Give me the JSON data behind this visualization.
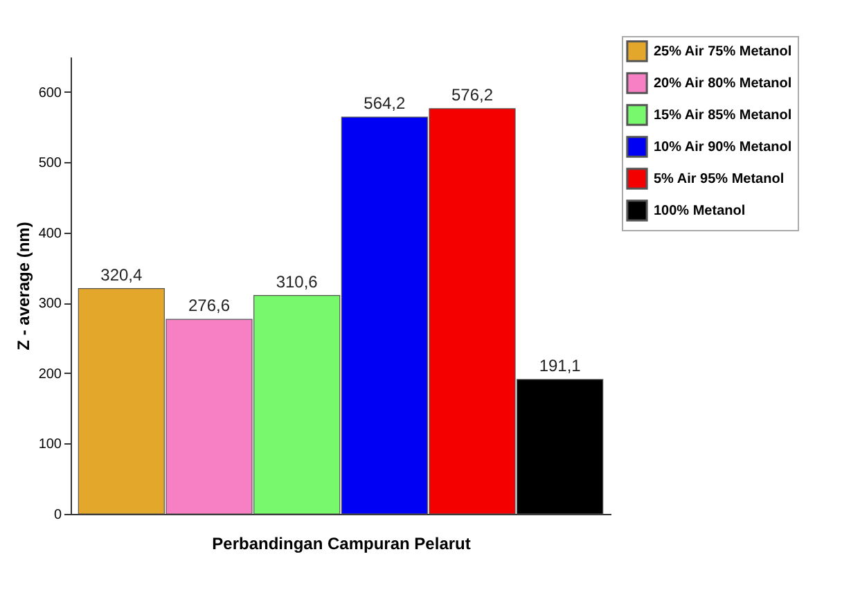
{
  "chart_data": {
    "type": "bar",
    "xlabel": "Perbandingan Campuran Pelarut",
    "ylabel": "Z - average (nm)",
    "categories": [
      null,
      null,
      null,
      null,
      null,
      null
    ],
    "series": [
      {
        "name": "25% Air 75% Metanol",
        "color": "#e3a82b",
        "values": [
          320.4,
          null,
          null,
          null,
          null,
          null
        ],
        "value_labels": [
          "320,4",
          null,
          null,
          null,
          null,
          null
        ]
      },
      {
        "name": "20% Air 80% Metanol",
        "color": "#f77fc4",
        "values": [
          null,
          276.6,
          null,
          null,
          null,
          null
        ],
        "value_labels": [
          null,
          "276,6",
          null,
          null,
          null,
          null
        ]
      },
      {
        "name": "15% Air 85% Metanol",
        "color": "#77f86d",
        "values": [
          null,
          null,
          310.6,
          null,
          null,
          null
        ],
        "value_labels": [
          null,
          null,
          "310,6",
          null,
          null,
          null
        ]
      },
      {
        "name": "10% Air 90% Metanol",
        "color": "#0000f5",
        "values": [
          null,
          null,
          null,
          564.2,
          null,
          null
        ],
        "value_labels": [
          null,
          null,
          null,
          "564,2",
          null,
          null
        ]
      },
      {
        "name": "5% Air 95% Metanol",
        "color": "#f50000",
        "values": [
          null,
          null,
          null,
          null,
          576.2,
          null
        ],
        "value_labels": [
          null,
          null,
          null,
          null,
          "576,2",
          null
        ]
      },
      {
        "name": "100% Metanol",
        "color": "#000000",
        "values": [
          null,
          null,
          null,
          null,
          null,
          191.1
        ],
        "value_labels": [
          null,
          null,
          null,
          null,
          null,
          "191,1"
        ]
      }
    ],
    "ylim": [
      0,
      650
    ],
    "yticks": [
      0,
      100,
      200,
      300,
      400,
      500,
      600
    ],
    "grid": false,
    "legend": "top right"
  }
}
